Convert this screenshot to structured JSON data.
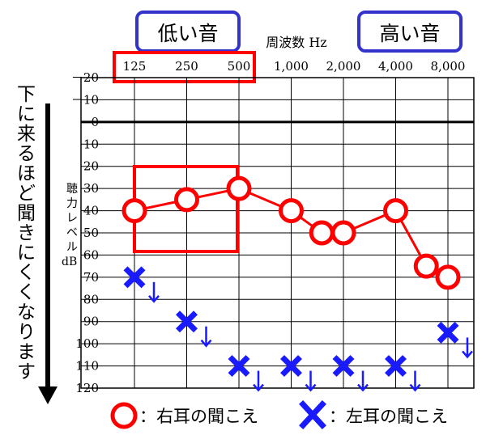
{
  "chart_data": {
    "type": "scatter",
    "title": "",
    "xlabel": "周波数 Hz",
    "ylabel": "聴力レベル dB",
    "x_ticks": [
      "125",
      "250",
      "500",
      "1,000",
      "2,000",
      "4,000",
      "8,000"
    ],
    "y_ticks": [
      "－20",
      "－10",
      "0",
      "10",
      "20",
      "30",
      "40",
      "50",
      "60",
      "70",
      "80",
      "90",
      "100",
      "110",
      "120"
    ],
    "ylim": [
      -20,
      120
    ],
    "y_inverted": true,
    "grid": true,
    "series": [
      {
        "name": "右耳の聞こえ",
        "marker": "circle",
        "color": "#ff0000",
        "connected": true,
        "points": [
          {
            "x": 125,
            "y": 40
          },
          {
            "x": 250,
            "y": 35
          },
          {
            "x": 500,
            "y": 30
          },
          {
            "x": 1000,
            "y": 40
          },
          {
            "x": 1500,
            "y": 50
          },
          {
            "x": 2000,
            "y": 50
          },
          {
            "x": 4000,
            "y": 40
          },
          {
            "x": 6000,
            "y": 65
          },
          {
            "x": 8000,
            "y": 70
          }
        ]
      },
      {
        "name": "左耳の聞こえ",
        "marker": "cross",
        "color": "#1a1aff",
        "connected": false,
        "scale_out": true,
        "points": [
          {
            "x": 125,
            "y": 70
          },
          {
            "x": 250,
            "y": 90
          },
          {
            "x": 500,
            "y": 110
          },
          {
            "x": 1000,
            "y": 110
          },
          {
            "x": 2000,
            "y": 110
          },
          {
            "x": 4000,
            "y": 110
          },
          {
            "x": 8000,
            "y": 95
          }
        ]
      }
    ],
    "annotations": {
      "low_label": "低い音",
      "high_label": "高い音",
      "side_note": "下に来るほど聞きにくくなります",
      "legend": [
        {
          "marker": "circle",
          "text": "：右耳の聞こえ"
        },
        {
          "marker": "cross",
          "text": "：左耳の聞こえ"
        }
      ]
    },
    "colors": {
      "red": "#ff0000",
      "blue": "#1a1aff",
      "box_border": "#3333cc",
      "grid": "#000000"
    }
  }
}
